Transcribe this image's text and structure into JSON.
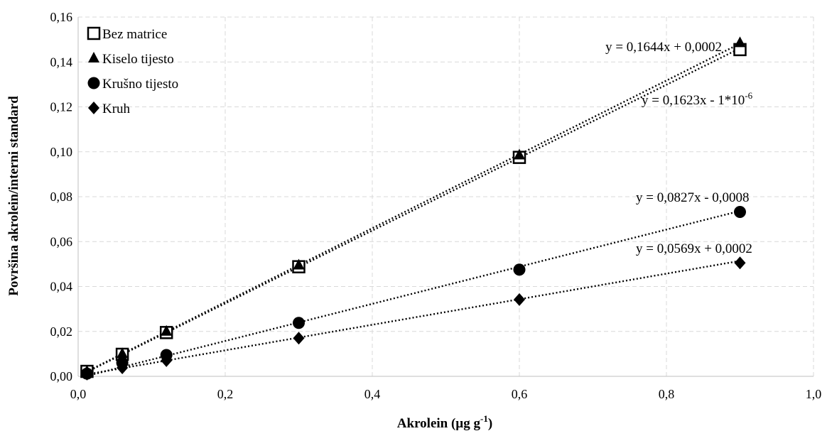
{
  "chart_data": {
    "type": "scatter",
    "title": "",
    "xlabel": "Akrolein (µg g",
    "xlabel_sup": "-1",
    "xlabel_close": ")",
    "ylabel": "Površina akrolein/interni standard",
    "xlim": [
      0,
      1.0
    ],
    "ylim": [
      0,
      0.16
    ],
    "x_ticks": [
      "0,0",
      "0,2",
      "0,4",
      "0,6",
      "0,8",
      "1,0"
    ],
    "x_tick_values": [
      0,
      0.2,
      0.4,
      0.6,
      0.8,
      1.0
    ],
    "y_ticks": [
      "0,00",
      "0,02",
      "0,04",
      "0,06",
      "0,08",
      "0,10",
      "0,12",
      "0,14",
      "0,16"
    ],
    "y_tick_values": [
      0,
      0.02,
      0.04,
      0.06,
      0.08,
      0.1,
      0.12,
      0.14,
      0.16
    ],
    "grid": true,
    "legend_position": "top-left",
    "series": [
      {
        "name": "Bez matrice",
        "marker": "open-square",
        "x": [
          0.012,
          0.06,
          0.12,
          0.3,
          0.6,
          0.9
        ],
        "y": [
          0.0022,
          0.0098,
          0.0195,
          0.0488,
          0.0975,
          0.1455
        ],
        "trendline": {
          "slope": 0.1623,
          "intercept": -1e-06
        },
        "equation": "y = 0,1623x - 1*10",
        "equation_sup": "-6"
      },
      {
        "name": "Kiselo tijesto",
        "marker": "triangle",
        "x": [
          0.012,
          0.06,
          0.12,
          0.3,
          0.6,
          0.9
        ],
        "y": [
          0.0022,
          0.01,
          0.02,
          0.0495,
          0.0985,
          0.1485
        ],
        "trendline": {
          "slope": 0.1644,
          "intercept": 0.0002
        },
        "equation": "y = 0,1644x + 0,0002",
        "equation_sup": ""
      },
      {
        "name": "Krušno tijesto",
        "marker": "circle",
        "x": [
          0.012,
          0.06,
          0.12,
          0.3,
          0.6,
          0.9
        ],
        "y": [
          0.0012,
          0.006,
          0.0095,
          0.0238,
          0.0475,
          0.0732
        ],
        "trendline": {
          "slope": 0.0827,
          "intercept": -0.0008
        },
        "equation": "y = 0,0827x - 0,0008",
        "equation_sup": ""
      },
      {
        "name": "Kruh",
        "marker": "diamond",
        "x": [
          0.012,
          0.06,
          0.12,
          0.3,
          0.6,
          0.9
        ],
        "y": [
          0.001,
          0.0038,
          0.007,
          0.017,
          0.0342,
          0.0505
        ],
        "trendline": {
          "slope": 0.0569,
          "intercept": 0.0002
        },
        "equation": "y = 0,0569x + 0,0002",
        "equation_sup": ""
      }
    ]
  }
}
